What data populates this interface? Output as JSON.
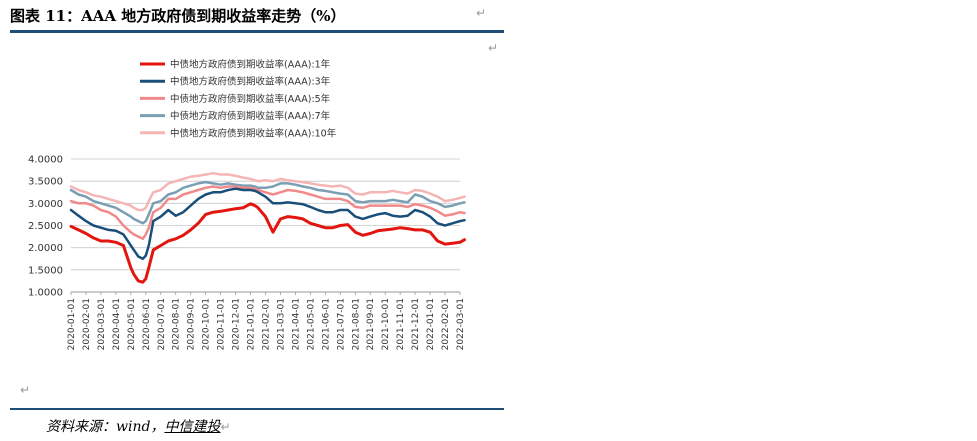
{
  "header": {
    "title": "图表 11：AAA 地方政府债到期收益率走势（%）",
    "para_mark": "↵"
  },
  "footer": {
    "source_prefix": "资料来源：wind，",
    "source_brand": "中信建投",
    "para_mark": "↵"
  },
  "chart_data": {
    "type": "line",
    "title": "",
    "xlabel": "",
    "ylabel": "",
    "ylim": [
      1.0,
      4.0
    ],
    "yticks": [
      "1.0000",
      "1.5000",
      "2.0000",
      "2.5000",
      "3.0000",
      "3.5000",
      "4.0000"
    ],
    "grid": true,
    "legend_position": "top",
    "categories": [
      "2020-01-01",
      "2020-02-01",
      "2020-03-01",
      "2020-04-01",
      "2020-05-01",
      "2020-06-01",
      "2020-07-01",
      "2020-08-01",
      "2020-09-01",
      "2020-10-01",
      "2020-11-01",
      "2020-12-01",
      "2021-01-01",
      "2021-02-01",
      "2021-03-01",
      "2021-04-01",
      "2021-05-01",
      "2021-06-01",
      "2021-07-01",
      "2021-08-01",
      "2021-09-01",
      "2021-10-01",
      "2021-11-01",
      "2021-12-01",
      "2022-01-01",
      "2022-02-01",
      "2022-03-01"
    ],
    "x": [
      0,
      0.5,
      1,
      1.5,
      2,
      2.5,
      3,
      3.5,
      4,
      4.2,
      4.5,
      4.8,
      5,
      5.2,
      5.5,
      6,
      6.5,
      7,
      7.5,
      8,
      8.5,
      9,
      9.5,
      10,
      10.5,
      11,
      11.5,
      12,
      12.3,
      12.5,
      13,
      13.5,
      14,
      14.5,
      15,
      15.5,
      16,
      16.5,
      17,
      17.5,
      18,
      18.5,
      19,
      19.5,
      20,
      20.5,
      21,
      21.5,
      22,
      22.5,
      23,
      23.5,
      24,
      24.5,
      25,
      25.5,
      26,
      26.3
    ],
    "series": [
      {
        "name": "中债地方政府债到期收益率(AAA):1年",
        "color": "#e3150f",
        "width": 3,
        "values": [
          2.48,
          2.4,
          2.32,
          2.22,
          2.15,
          2.15,
          2.12,
          2.05,
          1.55,
          1.4,
          1.25,
          1.22,
          1.3,
          1.55,
          1.95,
          2.05,
          2.15,
          2.2,
          2.28,
          2.4,
          2.55,
          2.75,
          2.8,
          2.82,
          2.85,
          2.88,
          2.9,
          2.99,
          2.95,
          2.9,
          2.7,
          2.35,
          2.65,
          2.7,
          2.68,
          2.65,
          2.55,
          2.5,
          2.45,
          2.45,
          2.5,
          2.52,
          2.35,
          2.28,
          2.32,
          2.38,
          2.4,
          2.42,
          2.45,
          2.43,
          2.4,
          2.4,
          2.35,
          2.15,
          2.08,
          2.1,
          2.12,
          2.18
        ]
      },
      {
        "name": "中债地方政府债到期收益率(AAA):3年",
        "color": "#1a4f7a",
        "width": 2.5,
        "values": [
          2.85,
          2.72,
          2.6,
          2.5,
          2.45,
          2.4,
          2.38,
          2.3,
          2.05,
          1.95,
          1.8,
          1.75,
          1.82,
          2.05,
          2.6,
          2.7,
          2.85,
          2.72,
          2.8,
          2.95,
          3.1,
          3.2,
          3.25,
          3.25,
          3.3,
          3.33,
          3.3,
          3.3,
          3.28,
          3.25,
          3.15,
          3.0,
          3.0,
          3.02,
          3.0,
          2.98,
          2.92,
          2.85,
          2.8,
          2.8,
          2.85,
          2.85,
          2.7,
          2.65,
          2.7,
          2.75,
          2.78,
          2.72,
          2.7,
          2.72,
          2.85,
          2.8,
          2.7,
          2.55,
          2.5,
          2.55,
          2.6,
          2.62
        ]
      },
      {
        "name": "中债地方政府债到期收益率(AAA):5年",
        "color": "#f08a8a",
        "width": 2.5,
        "values": [
          3.05,
          3.0,
          3.0,
          2.95,
          2.85,
          2.8,
          2.7,
          2.5,
          2.35,
          2.3,
          2.25,
          2.2,
          2.3,
          2.45,
          2.8,
          2.9,
          3.1,
          3.1,
          3.2,
          3.25,
          3.3,
          3.35,
          3.38,
          3.35,
          3.38,
          3.38,
          3.35,
          3.35,
          3.32,
          3.3,
          3.25,
          3.2,
          3.25,
          3.3,
          3.28,
          3.25,
          3.2,
          3.15,
          3.1,
          3.1,
          3.1,
          3.05,
          2.92,
          2.9,
          2.95,
          2.95,
          2.95,
          2.95,
          2.95,
          2.92,
          2.98,
          2.95,
          2.9,
          2.82,
          2.72,
          2.75,
          2.8,
          2.78
        ]
      },
      {
        "name": "中债地方政府债到期收益率(AAA):7年",
        "color": "#7a9fb5",
        "width": 2.5,
        "values": [
          3.3,
          3.2,
          3.15,
          3.05,
          3.0,
          2.95,
          2.9,
          2.8,
          2.7,
          2.65,
          2.6,
          2.55,
          2.6,
          2.75,
          3.0,
          3.05,
          3.2,
          3.25,
          3.35,
          3.4,
          3.45,
          3.48,
          3.45,
          3.42,
          3.45,
          3.42,
          3.4,
          3.4,
          3.38,
          3.35,
          3.35,
          3.38,
          3.45,
          3.45,
          3.42,
          3.38,
          3.35,
          3.3,
          3.28,
          3.25,
          3.22,
          3.2,
          3.05,
          3.02,
          3.05,
          3.05,
          3.05,
          3.08,
          3.05,
          3.02,
          3.2,
          3.15,
          3.05,
          3.0,
          2.92,
          2.95,
          3.0,
          3.02
        ]
      },
      {
        "name": "中债地方政府债到期收益率(AAA):10年",
        "color": "#f5b5b5",
        "width": 2.5,
        "values": [
          3.38,
          3.3,
          3.25,
          3.18,
          3.15,
          3.1,
          3.05,
          3.0,
          2.95,
          2.9,
          2.85,
          2.85,
          2.9,
          3.05,
          3.25,
          3.3,
          3.45,
          3.5,
          3.55,
          3.6,
          3.62,
          3.65,
          3.68,
          3.65,
          3.65,
          3.62,
          3.58,
          3.55,
          3.52,
          3.5,
          3.52,
          3.5,
          3.55,
          3.52,
          3.5,
          3.48,
          3.45,
          3.42,
          3.4,
          3.38,
          3.4,
          3.35,
          3.22,
          3.2,
          3.25,
          3.25,
          3.25,
          3.28,
          3.25,
          3.22,
          3.3,
          3.28,
          3.22,
          3.15,
          3.05,
          3.08,
          3.12,
          3.15
        ]
      }
    ]
  }
}
